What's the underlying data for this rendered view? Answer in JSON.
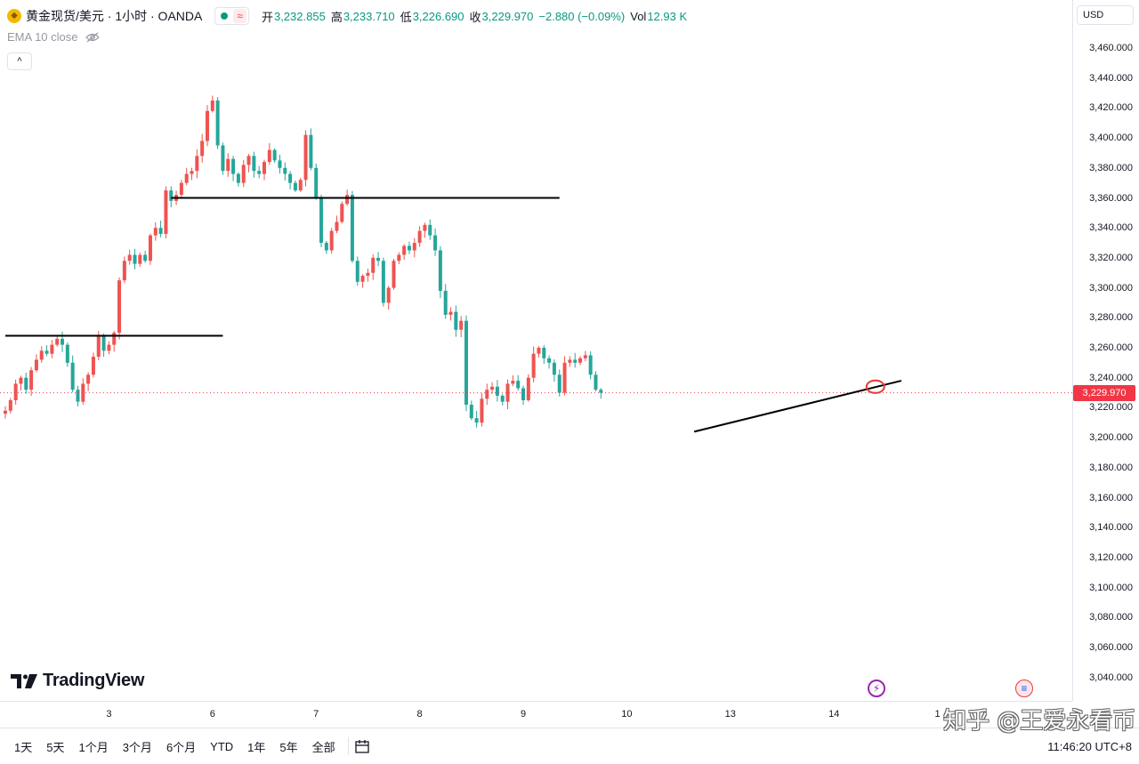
{
  "header": {
    "title": "黄金现货/美元 · 1小时 · OANDA",
    "market_status_icon": "dot-green",
    "delay_icon": "≈",
    "ohlc": {
      "open_label": "开",
      "open": "3,232.855",
      "high_label": "高",
      "high": "3,233.710",
      "low_label": "低",
      "low": "3,226.690",
      "close_label": "收",
      "close": "3,229.970",
      "change": "−2.880 (−0.09%)",
      "vol_label": "Vol",
      "vol": "12.93 K"
    },
    "indicator": "EMA 10 close",
    "collapse_icon": "^"
  },
  "currency": "USD",
  "logo_text": "TradingView",
  "last_price_tag": "3,229.970",
  "range_buttons": [
    "1天",
    "5天",
    "1个月",
    "3个月",
    "6个月",
    "YTD",
    "1年",
    "5年",
    "全部"
  ],
  "clock": "11:46:20 UTC+8",
  "watermark": "知乎 @王爱永看币",
  "colors": {
    "up": "#ef5350",
    "down": "#26a69a",
    "last_price": "#f23645",
    "trendline": "#000000"
  },
  "chart_data": {
    "type": "candlestick",
    "title": "黄金现货/美元 · 1小时 · OANDA",
    "y_ticks": [
      "3,460.000",
      "3,440.000",
      "3,420.000",
      "3,400.000",
      "3,380.000",
      "3,360.000",
      "3,340.000",
      "3,320.000",
      "3,300.000",
      "3,280.000",
      "3,260.000",
      "3,240.000",
      "3,220.000",
      "3,200.000",
      "3,180.000",
      "3,160.000",
      "3,140.000",
      "3,120.000",
      "3,100.000",
      "3,080.000",
      "3,060.000",
      "3,040.000"
    ],
    "ylim": [
      3030,
      3475
    ],
    "x_ticks": [
      {
        "label": "3",
        "bar": 20
      },
      {
        "label": "6",
        "bar": 40
      },
      {
        "label": "7",
        "bar": 60
      },
      {
        "label": "8",
        "bar": 80
      },
      {
        "label": "9",
        "bar": 100
      },
      {
        "label": "10",
        "bar": 120
      },
      {
        "label": "13",
        "bar": 140
      },
      {
        "label": "14",
        "bar": 160
      },
      {
        "label": "1",
        "bar": 180
      }
    ],
    "close_path": [
      3218,
      3225,
      3236,
      3240,
      3232,
      3245,
      3252,
      3258,
      3256,
      3262,
      3266,
      3262,
      3250,
      3232,
      3224,
      3236,
      3242,
      3254,
      3268,
      3258,
      3262,
      3270,
      3305,
      3318,
      3322,
      3316,
      3322,
      3318,
      3335,
      3340,
      3336,
      3365,
      3358,
      3362,
      3370,
      3376,
      3378,
      3388,
      3398,
      3418,
      3425,
      3395,
      3378,
      3386,
      3376,
      3370,
      3382,
      3388,
      3378,
      3376,
      3384,
      3392,
      3385,
      3380,
      3376,
      3370,
      3365,
      3372,
      3402,
      3380,
      3360,
      3330,
      3325,
      3338,
      3344,
      3356,
      3362,
      3318,
      3304,
      3308,
      3310,
      3320,
      3318,
      3290,
      3300,
      3318,
      3322,
      3328,
      3325,
      3330,
      3338,
      3342,
      3335,
      3325,
      3298,
      3282,
      3284,
      3272,
      3278,
      3222,
      3213,
      3210,
      3226,
      3232,
      3234,
      3228,
      3224,
      3236,
      3238,
      3233,
      3225,
      3240,
      3256,
      3260,
      3253,
      3250,
      3242,
      3230,
      3250,
      3252,
      3250,
      3253,
      3255,
      3242,
      3232,
      3230
    ],
    "last_price": 3229.97,
    "lines": [
      {
        "from": {
          "bar": 0,
          "price": 3268
        },
        "to": {
          "bar": 42,
          "price": 3268
        }
      },
      {
        "from": {
          "bar": 32,
          "price": 3360
        },
        "to": {
          "bar": 107,
          "price": 3360
        }
      },
      {
        "from": {
          "bar": 133,
          "price": 3204
        },
        "to": {
          "bar": 173,
          "price": 3238
        }
      }
    ],
    "marker_circle": {
      "bar": 168,
      "price": 3234
    }
  }
}
